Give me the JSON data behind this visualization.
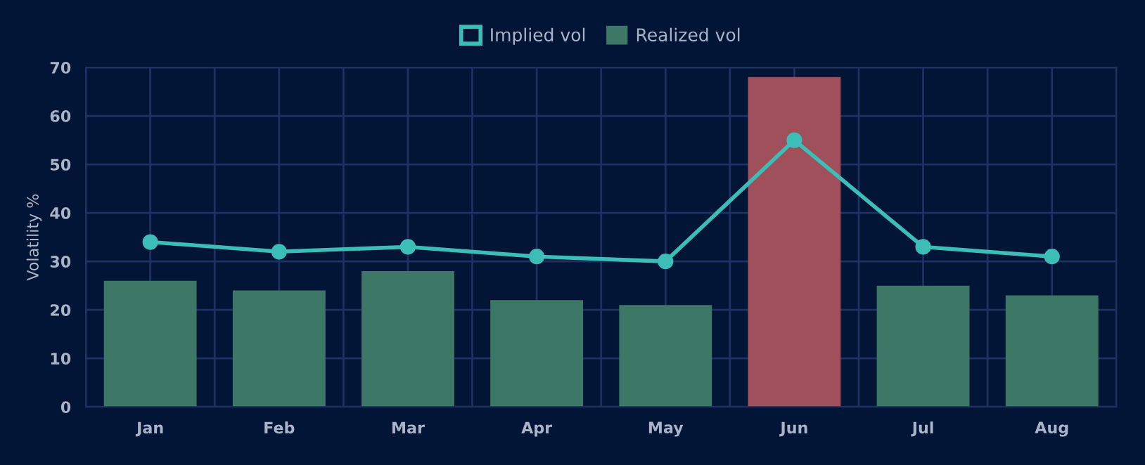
{
  "chart_data": {
    "type": "bar",
    "ylabel": "Volatility %",
    "categories": [
      "Jan",
      "Feb",
      "Mar",
      "Apr",
      "May",
      "Jun",
      "Jul",
      "Aug"
    ],
    "series": [
      {
        "name": "Implied vol",
        "type": "line",
        "color": "#3dbdb8",
        "values": [
          34,
          32,
          33,
          31,
          30,
          55,
          33,
          31
        ],
        "marker": "circle",
        "line_style": "solid"
      },
      {
        "name": "Realized vol",
        "color": "#3d7766",
        "colors": [
          "#3d7766",
          "#3d7766",
          "#3d7766",
          "#3d7766",
          "#3d7766",
          "#a0505a",
          "#3d7766",
          "#3d7766"
        ],
        "values": [
          26,
          24,
          28,
          22,
          21,
          68,
          25,
          23
        ]
      }
    ],
    "ylim": [
      0,
      70
    ],
    "yticks": [
      0,
      10,
      20,
      30,
      40,
      50,
      60,
      70
    ],
    "grid": true,
    "legend": "top"
  }
}
